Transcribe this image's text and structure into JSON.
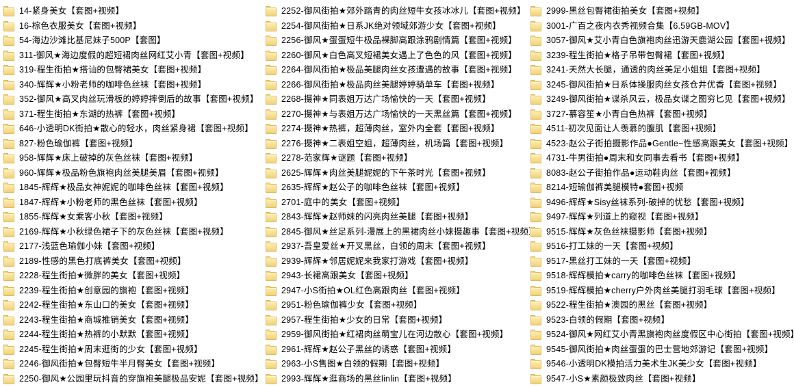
{
  "app": {
    "view": "explorer-list-view",
    "background_color": "#ffffff",
    "text_color": "#000000",
    "folder_fill_color": "#f7df92",
    "folder_border_color": "#dfb95c"
  },
  "file_list": {
    "columns": [
      {
        "items": [
          "14-紧身美女【套图+视频】",
          "16-棕色衣服美女【套图+视频】",
          "54-海边沙滩比基尼妹子500P【套图】",
          "311-御风★海边度假的超短裙肉丝网红艾小青【套图+视频】",
          "319-程生街拍★搭讪的包臀裙美女【套图+视频】",
          "340-辉辉★小粉老师的咖啡色丝袜【套图+视频】",
          "352-御风★高叉肉丝玩滑板的婷婷摔倒后的故事【套图+视频】",
          "371-程生街拍★东湖的热裤【套图+视频】",
          "646-小透明DK街拍★散心的轻水，肉丝紧身裙【套图+视频】",
          "827-粉色瑜伽裤【套图+视频】",
          "958-辉辉★床上破掉的灰色丝袜【套图+视频】",
          "960-辉辉★极品粉色旗袍肉丝美腿美眉【套图+视频】",
          "1845-辉辉★极品女神妮妮的咖啡色丝袜【套图+视频】",
          "1847-辉辉★小粉老师的黑色丝袜【套图+视频】",
          "1855-辉辉★女乘客小秋【套图+视频】",
          "2169-辉辉★小秋绿色裙子下的灰色丝袜【套图+视频】",
          "2177-浅蓝色瑜伽小妹【套图+视频】",
          "2189-性感的黑色打底裤美女【套图+视频】",
          "2228-程生街拍★微胖的美女【套图+视频】",
          "2239-程生街拍★创意园的旗袍【套图+视频】",
          "2242-程生街拍★东山口的美女【套图+视频】",
          "2243-程生街拍★商城推销美女【套图+视频】",
          "2244-程生街拍★热裤的小默默【套图+视频】",
          "2245-程生街拍★周末逛街的少女【套图+视频】",
          "2246-御风街拍★包臀短牛半月臀美女【套图+视频】",
          "2250-御风★公园里玩抖音的穿旗袍美腿极品安妮【套图+视频】"
        ]
      },
      {
        "items": [
          "2252-御风街拍★郊外踏青的肉丝短牛女孩冰冰儿【套图+视频】",
          "2254-御风街拍★日系JK绝对领域郊游少女【套图+视频】",
          "2256-御风★蛋蛋短牛极品裸脚高跟涂鸦剧情篇【套图+视频】",
          "2260-御风★白色高叉短裙美女遇上了色色的风【套图+视频】",
          "2264-御风街拍★极品美腿肉丝女孩遭遇的故事【套图+视频】",
          "2266-御风街拍★极品肉丝美腿婷婷骑单车【套图+视频】",
          "2268-摄神★同表姐万达广场愉快的一天【套图+视频】",
          "2270-摄神★与表姐万达广场愉快的一天黑丝篇【套图+视频】",
          "2274-摄神★热裤，超薄肉丝，室外内全套【套图+视频】",
          "2276-摄神★二表姐空姐，超薄肉丝，机场篇【套图+视频】",
          "2278-范家辉★谜题【套图+视频】",
          "2625-辉辉★肉丝美腿妮妮的下午茶时光【套图+视频】",
          "2635-辉辉★赵公子的咖啡色丝袜【套图+视频】",
          "2701-庭中的美女【套图+视频】",
          "2843-辉辉★赵师妹的闪亮肉丝美腿【套图+视频】",
          "2845-御风★丝足系列-漫展上的黑裙肉丝小妹摄趣事【套图+视频】",
          "2937-吾皇爱丝★开叉黑丝，白领的周末【套图+视频】",
          "2939-辉辉★邻居妮妮来我家打游戏【套图+视频】",
          "2943-长裙高跟美女【套图+视频】",
          "2947-小S街拍★OL红色高跟肉丝【套图+视频】",
          "2951-粉色瑜伽裤少女【套图+视频】",
          "2957-程生街拍★少女的日常【套图+视频】",
          "2959-御风街拍★红裙肉丝萌宝儿在河边散心【套图+视频】",
          "2961-辉辉★赵公子黑丝的诱惑【套图+视频】",
          "2963-小S售图★白领的假期【套图+视频】",
          "2993-辉辉★逛商场的黑丝linlin【套图+视频】"
        ]
      },
      {
        "items": [
          "2999-黑丝包臀裙街拍美女【套图+视频】",
          "3001-广百之夜内衣秀视频合集【6.59GB-MOV】",
          "3057-御风★艾小青白色旗袍肉丝迅游天鹿湖公园【套图+视频】",
          "3239-程生街拍★格子吊带包臀裙【套图+视频】",
          "3241-天然大长腿，通透的肉丝美足小姐姐【套图+视频】",
          "3245-御风街拍★日系体操服肉丝女孩仓井优香【套图+视频】",
          "3249-御风街拍★谍杀风云，极品女谍之图穷匕见【套图+视频】",
          "3727-慕容笙★小青白色热裤【套图+视频】",
          "4511-初次见面让人羡慕的腹肌【套图+视频】",
          "4523-赵公子街拍摄影作品●Gentle~性感高跟美女【套图+视频】",
          "4731-牛男街拍●周末和女同事去看书【套图+视频】",
          "8083-赵公子街拍作品●运动鞋肉丝【套图+视频】",
          "8214-短瑜伽裤美腿模特●套图+视频",
          "9496-辉辉★Sisy丝袜系列-破掉的忧愁【套图+视频】",
          "9497-辉辉★列道上的窥视【套图+视频】",
          "9515-辉辉★灰色丝袜摄影师【套图+视频】",
          "9516-打工妹的一天【套图+视频】",
          "9517-黑丝打工妹的一天【套图+视频】",
          "9518-辉辉模拍★carry的咖啡色丝袜【套图+视频】",
          "9519-辉辉模拍★cherry户外肉丝美腿打羽毛球【套图+视频】",
          "9522-程生街拍★澳园的黑丝【套图+视频】",
          "9523-白领的假期【套图+视频】",
          "9524-御风★网红艾小青黑旗袍肉丝度假区中心街拍【套图+视频】",
          "9545-御风街拍★肉丝蛋蛋的巴士营地郊游记【套图+视频】",
          "9546-小透明DK模拍活力美术生JK美少女【套图+视频】",
          "9547-小S★素颜极致肉丝【套图+视频】"
        ]
      }
    ]
  }
}
